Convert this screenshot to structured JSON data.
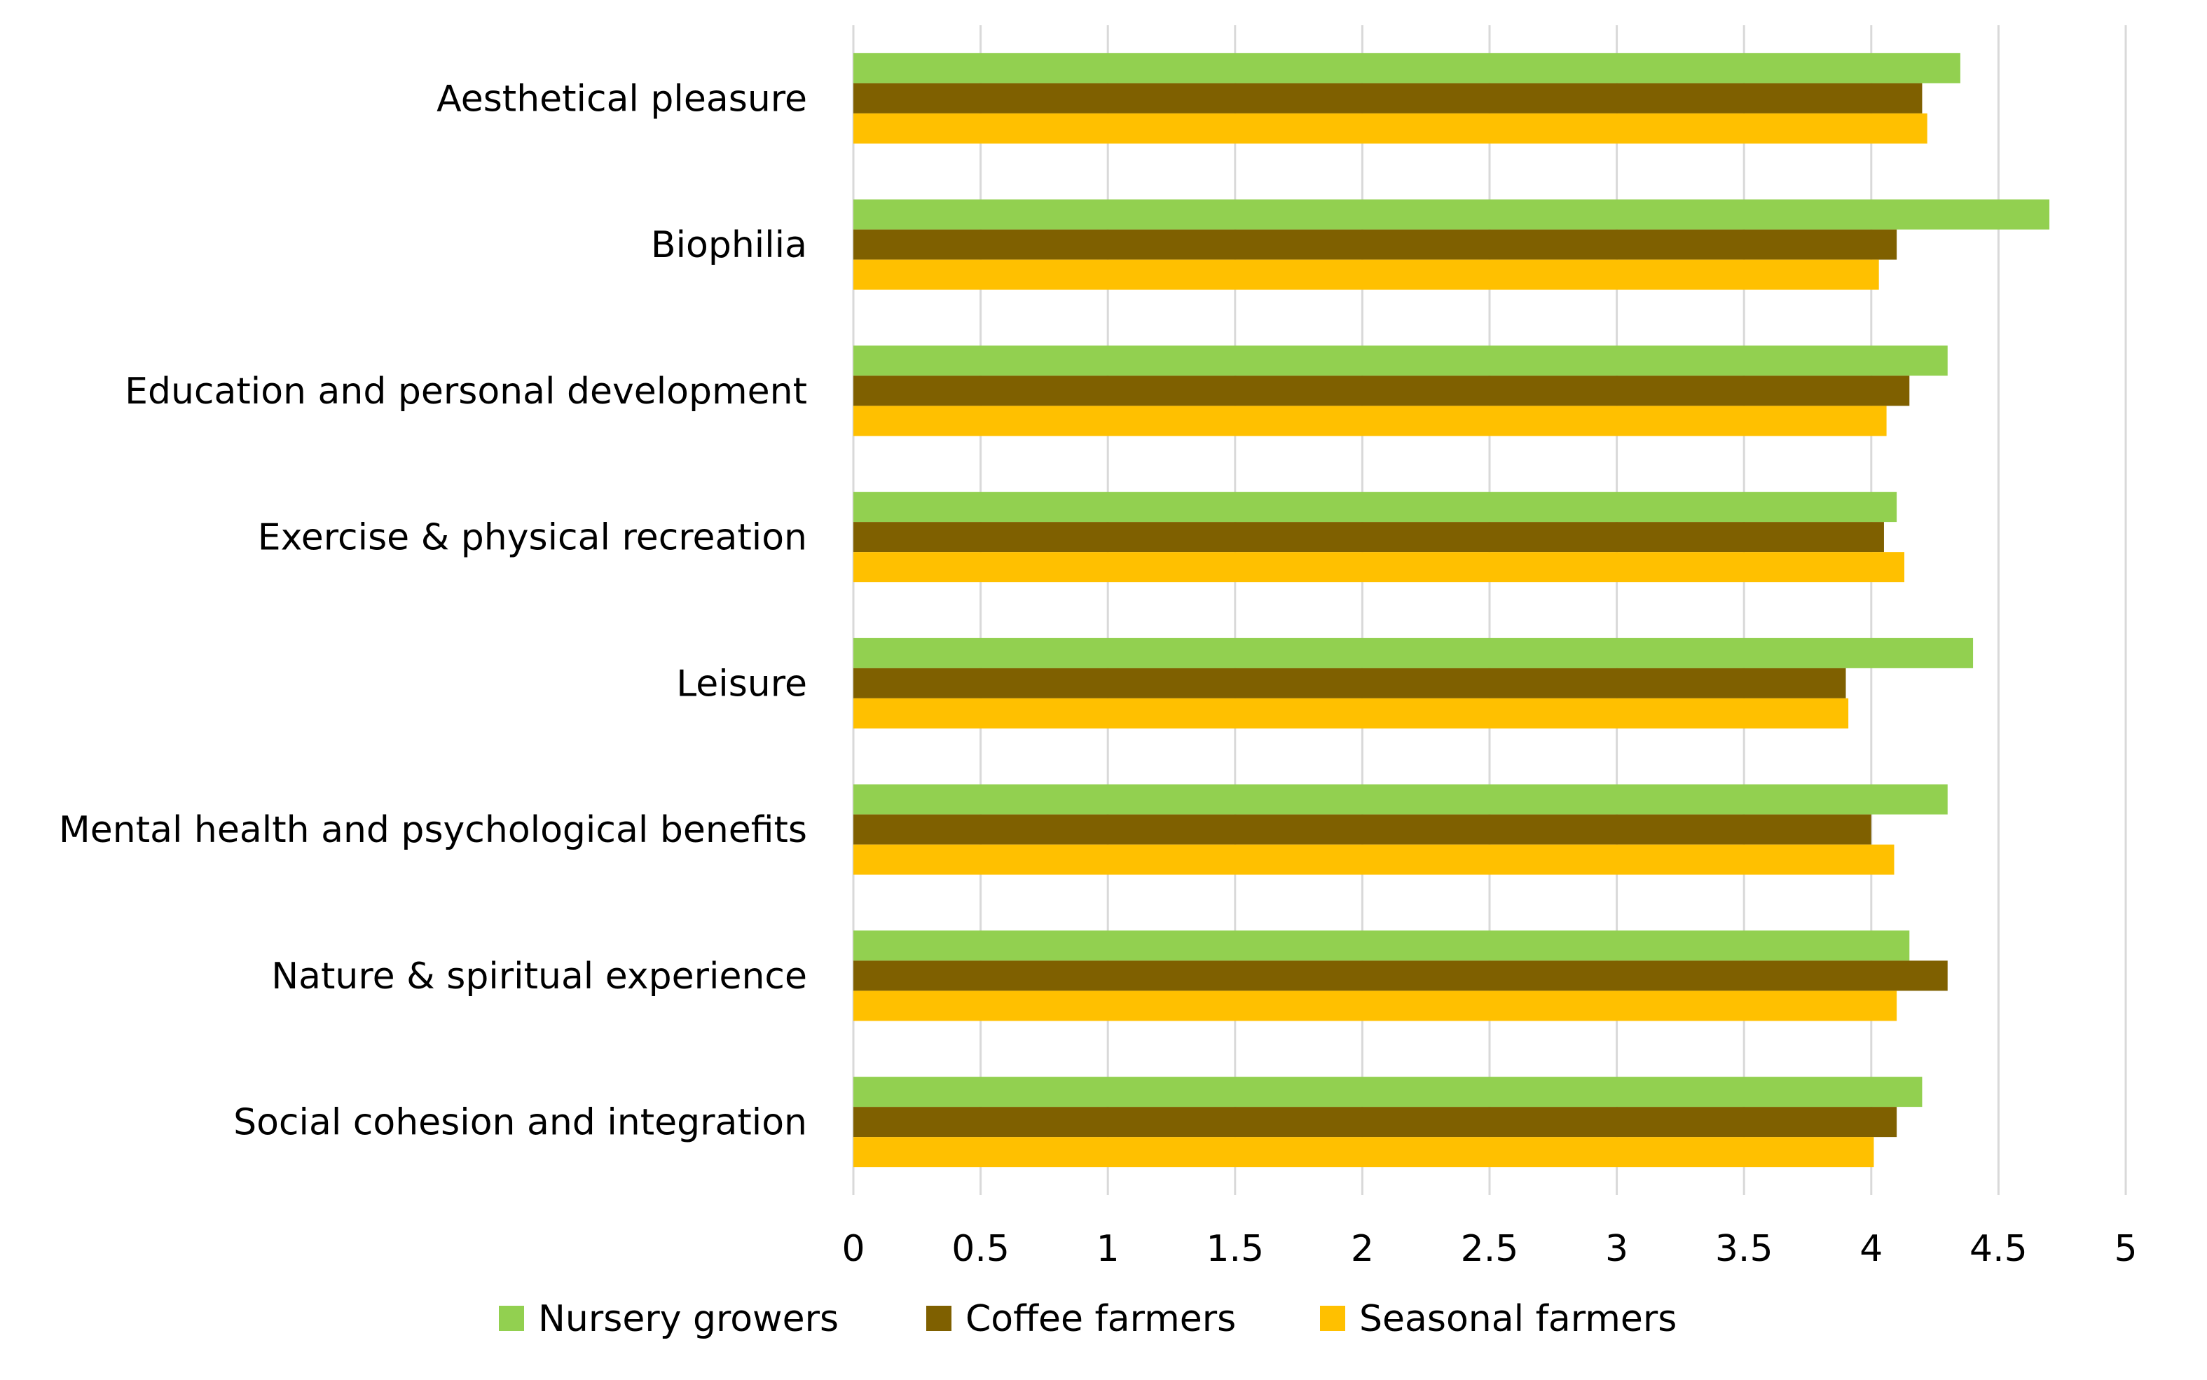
{
  "chart_data": {
    "type": "bar",
    "orientation": "horizontal",
    "title": "",
    "xlabel": "",
    "ylabel": "",
    "xlim": [
      0,
      5
    ],
    "x_ticks": [
      "0",
      "0.5",
      "1",
      "1.5",
      "2",
      "2.5",
      "3",
      "3.5",
      "4",
      "4.5",
      "5"
    ],
    "grid": "vertical",
    "legend_position": "bottom",
    "categories": [
      "Aesthetical pleasure",
      "Biophilia",
      "Education and personal development",
      "Exercise & physical recreation",
      "Leisure",
      "Mental health and psychological benefits",
      "Nature & spiritual experience",
      "Social cohesion and integration"
    ],
    "series": [
      {
        "name": "Nursery growers",
        "color": "#92D050",
        "values": [
          4.35,
          4.7,
          4.3,
          4.1,
          4.4,
          4.3,
          4.15,
          4.2
        ]
      },
      {
        "name": "Coffee farmers",
        "color": "#7F6000",
        "values": [
          4.2,
          4.1,
          4.15,
          4.05,
          3.9,
          4.0,
          4.3,
          4.1
        ]
      },
      {
        "name": "Seasonal farmers",
        "color": "#FFC000",
        "values": [
          4.22,
          4.03,
          4.06,
          4.13,
          3.91,
          4.09,
          4.1,
          4.01
        ]
      }
    ]
  }
}
